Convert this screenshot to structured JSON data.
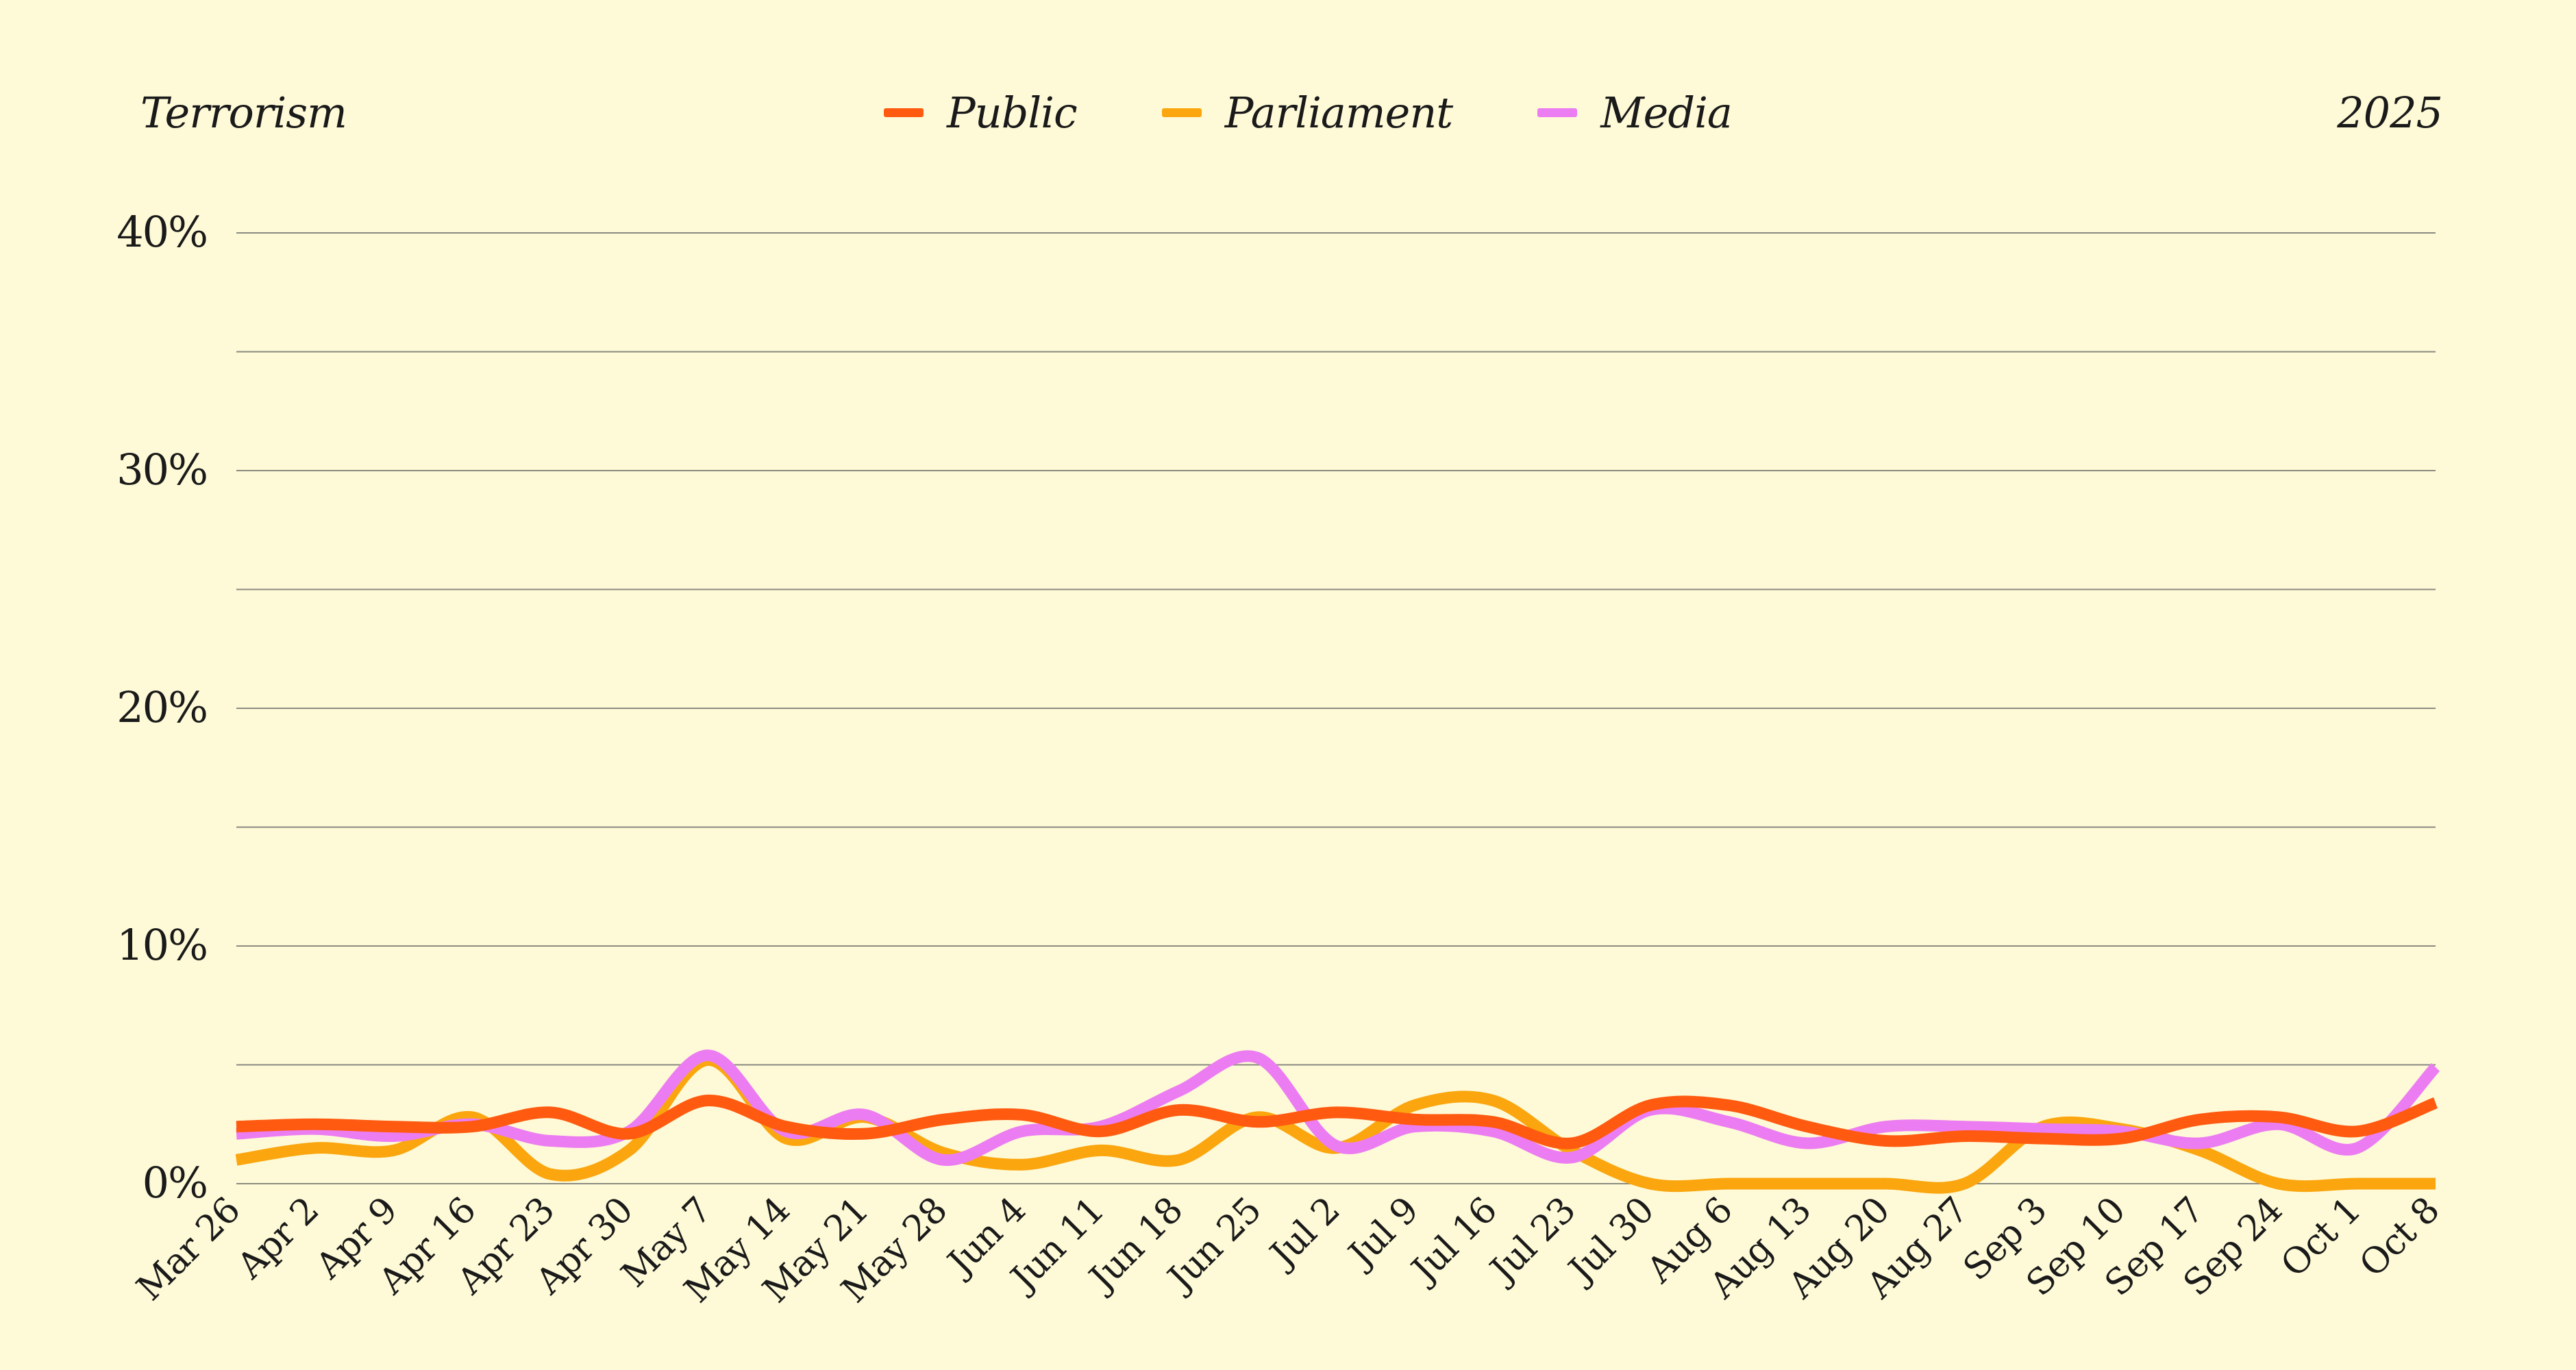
{
  "header": {
    "topic": "Terrorism",
    "year": "2025"
  },
  "colors": {
    "background": "#fefad7",
    "grid": "#8a8a80",
    "Public": "#ff5a10",
    "Parliament": "#fba60f",
    "Media": "#ec7cf2"
  },
  "chart_data": {
    "type": "line",
    "title": "",
    "xlabel": "",
    "ylabel": "",
    "ylim": [
      0,
      40
    ],
    "ytick_labels": [
      "0%",
      "10%",
      "20%",
      "30%",
      "40%"
    ],
    "y_tick_values": [
      0,
      10,
      20,
      30,
      40
    ],
    "grid": true,
    "legend_position": "top-center",
    "x": [
      "Mar 26",
      "Apr 2",
      "Apr 9",
      "Apr 16",
      "Apr 23",
      "Apr 30",
      "May 7",
      "May 14",
      "May 21",
      "May 28",
      "Jun 4",
      "Jun 11",
      "Jun 18",
      "Jun 25",
      "Jul 2",
      "Jul 9",
      "Jul 16",
      "Jul 23",
      "Jul 30",
      "Aug 6",
      "Aug 13",
      "Aug 20",
      "Aug 27",
      "Sep 3",
      "Sep 10",
      "Sep 17",
      "Sep 24",
      "Oct 1",
      "Oct 8"
    ],
    "series": [
      {
        "name": "Public",
        "color": "#ff5a10",
        "values": [
          2.4,
          2.5,
          2.4,
          2.4,
          3.0,
          2.1,
          3.5,
          2.4,
          2.1,
          2.7,
          2.9,
          2.2,
          3.1,
          2.6,
          3.0,
          2.7,
          2.6,
          1.7,
          3.3,
          3.3,
          2.4,
          1.8,
          2.0,
          1.9,
          1.9,
          2.7,
          2.8,
          2.2,
          3.4
        ]
      },
      {
        "name": "Parliament",
        "color": "#fba60f",
        "values": [
          1.0,
          1.5,
          1.4,
          2.8,
          0.4,
          1.4,
          5.2,
          1.9,
          2.8,
          1.3,
          0.8,
          1.4,
          1.0,
          2.8,
          1.5,
          3.3,
          3.5,
          1.4,
          0.0,
          0.0,
          0.0,
          0.0,
          0.0,
          2.4,
          2.3,
          1.4,
          0.0,
          0.0,
          0.0
        ]
      },
      {
        "name": "Media",
        "color": "#ec7cf2",
        "values": [
          2.1,
          2.3,
          2.0,
          2.5,
          1.8,
          2.2,
          5.4,
          2.2,
          2.9,
          1.0,
          2.2,
          2.4,
          3.9,
          5.3,
          1.6,
          2.4,
          2.2,
          1.1,
          3.1,
          2.6,
          1.7,
          2.4,
          2.4,
          2.3,
          2.2,
          1.7,
          2.5,
          1.5,
          4.9
        ]
      }
    ]
  }
}
